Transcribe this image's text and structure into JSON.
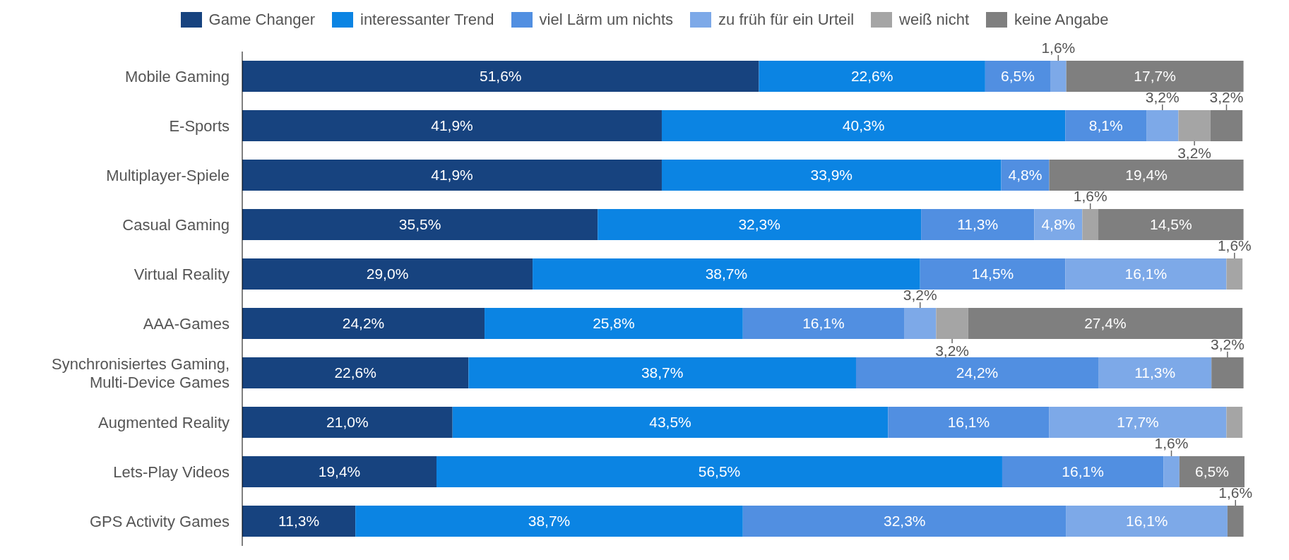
{
  "chart_data": {
    "type": "bar",
    "orientation": "horizontal",
    "stacked": true,
    "legend": "top",
    "tick_labels": "y",
    "xlim": [
      0,
      100
    ],
    "categories": [
      "Mobile Gaming",
      "E-Sports",
      "Multiplayer-Spiele",
      "Casual Gaming",
      "Virtual Reality",
      "AAA-Games",
      "Synchronisiertes Gaming,\nMulti-Device Games",
      "Augmented Reality",
      "Lets-Play Videos",
      "GPS Activity Games"
    ],
    "series": [
      {
        "name": "Game Changer",
        "color": "#17437f",
        "values": [
          51.6,
          41.9,
          41.9,
          35.5,
          29.0,
          24.2,
          22.6,
          21.0,
          19.4,
          11.3
        ],
        "value_labels": [
          "51,6%",
          "41,9%",
          "41,9%",
          "35,5%",
          "29,0%",
          "24,2%",
          "22,6%",
          "21,0%",
          "19,4%",
          "11,3%"
        ]
      },
      {
        "name": "interessanter Trend",
        "color": "#0b84e3",
        "values": [
          22.6,
          40.3,
          33.9,
          32.3,
          38.7,
          25.8,
          38.7,
          43.5,
          56.5,
          38.7
        ],
        "value_labels": [
          "22,6%",
          "40,3%",
          "33,9%",
          "32,3%",
          "38,7%",
          "25,8%",
          "38,7%",
          "43,5%",
          "56,5%",
          "38,7%"
        ]
      },
      {
        "name": "viel Lärm um nichts",
        "color": "#518fe1",
        "values": [
          6.5,
          8.1,
          4.8,
          11.3,
          14.5,
          16.1,
          24.2,
          16.1,
          16.1,
          32.3
        ],
        "value_labels": [
          "6,5%",
          "8,1%",
          "4,8%",
          "11,3%",
          "14,5%",
          "16,1%",
          "24,2%",
          "16,1%",
          "16,1%",
          "32,3%"
        ]
      },
      {
        "name": "zu früh für ein Urteil",
        "color": "#7da9e8",
        "values": [
          1.6,
          3.2,
          null,
          4.8,
          16.1,
          3.2,
          11.3,
          17.7,
          1.6,
          16.1
        ],
        "value_labels": [
          "1,6%",
          "3,2%",
          null,
          "4,8%",
          "16,1%",
          "3,2%",
          "11,3%",
          "17,7%",
          "1,6%",
          "16,1%"
        ]
      },
      {
        "name": "weiß nicht",
        "color": "#a5a5a5",
        "values": [
          null,
          3.2,
          null,
          1.6,
          1.6,
          3.2,
          null,
          1.6,
          null,
          null
        ],
        "value_labels": [
          null,
          "3,2%",
          null,
          "1,6%",
          "1,6%",
          "3,2%",
          null,
          null,
          null,
          null
        ]
      },
      {
        "name": "keine Angabe",
        "color": "#7f7f7f",
        "values": [
          17.7,
          3.2,
          19.4,
          14.5,
          null,
          27.4,
          3.2,
          null,
          6.5,
          1.6
        ],
        "value_labels": [
          "17,7%",
          "3,2%",
          "19,4%",
          "14,5%",
          null,
          "27,4%",
          "3,2%",
          null,
          "6,5%",
          "1,6%"
        ]
      }
    ]
  }
}
